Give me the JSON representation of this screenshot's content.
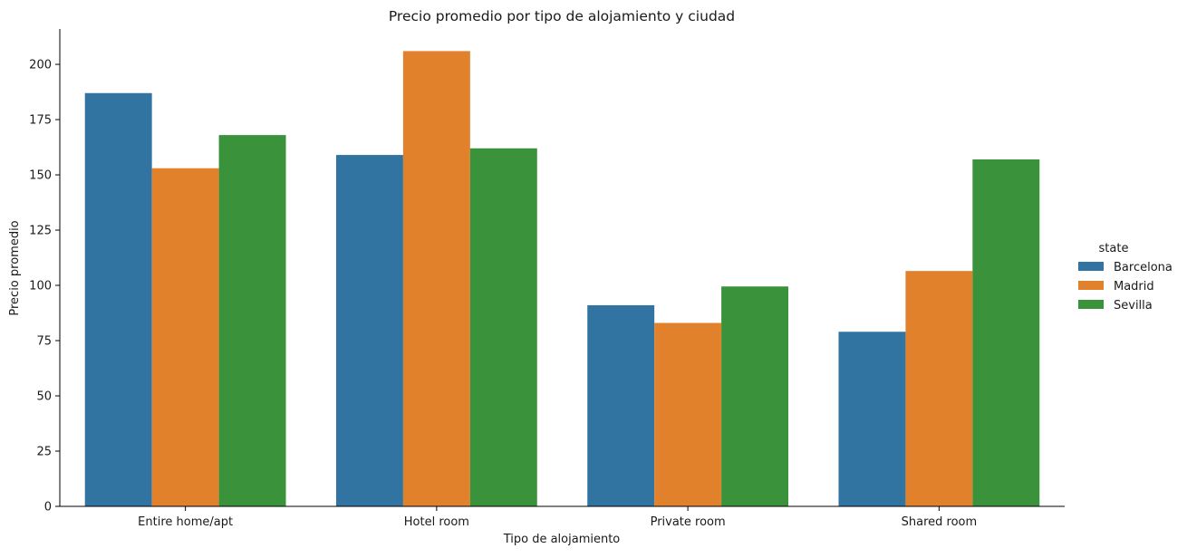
{
  "chart_data": {
    "type": "bar",
    "title": "Precio promedio por tipo de alojamiento y ciudad",
    "xlabel": "Tipo de alojamiento",
    "ylabel": "Precio promedio",
    "categories": [
      "Entire home/apt",
      "Hotel room",
      "Private room",
      "Shared room"
    ],
    "series": [
      {
        "name": "Barcelona",
        "color": "#3274a1",
        "values": [
          187,
          159,
          91,
          79
        ]
      },
      {
        "name": "Madrid",
        "color": "#e1812c",
        "values": [
          153,
          206,
          83,
          106.5
        ]
      },
      {
        "name": "Sevilla",
        "color": "#3a923a",
        "values": [
          168,
          162,
          99.5,
          157
        ]
      }
    ],
    "ylim": [
      0,
      216
    ],
    "yticks": [
      "0",
      "25",
      "50",
      "75",
      "100",
      "125",
      "150",
      "175",
      "200"
    ],
    "grid": false,
    "legend": {
      "title": "state",
      "position": "right"
    }
  }
}
